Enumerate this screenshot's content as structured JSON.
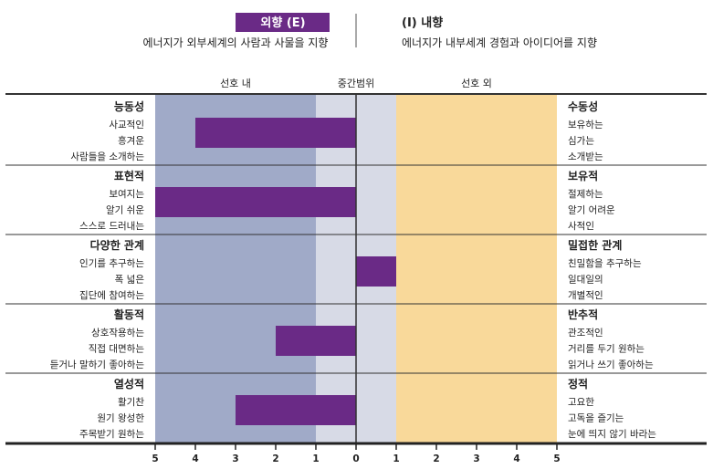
{
  "header": {
    "left_badge": "외향 (E)",
    "left_desc": "에너지가 외부세계의 사람과 사물을 지향",
    "right_title": "(I) 내향",
    "right_desc": "에너지가 내부세계 경험과 아이디어를 지향"
  },
  "zones": {
    "left": "선호 내",
    "middle": "중간범위",
    "right": "선호 외"
  },
  "colors": {
    "bar": "#6a2a86",
    "left_zone": "#a0aac8",
    "middle_zone": "#d7dae6",
    "right_zone": "#f9d99a",
    "badge": "#6a2a86"
  },
  "chart_data": {
    "type": "bar",
    "orientation": "horizontal",
    "x_ticks": [
      "5",
      "4",
      "3",
      "2",
      "1",
      "0",
      "1",
      "2",
      "3",
      "4",
      "5"
    ],
    "xlim": [
      -5,
      5
    ],
    "categories": [
      {
        "left_title": "능동성",
        "left_items": [
          "사교적인",
          "흥겨운",
          "사람들을 소개하는"
        ],
        "right_title": "수동성",
        "right_items": [
          "보유하는",
          "심가는",
          "소개받는"
        ],
        "value": -4
      },
      {
        "left_title": "표현적",
        "left_items": [
          "보여지는",
          "알기 쉬운",
          "스스로 드러내는"
        ],
        "right_title": "보유적",
        "right_items": [
          "절제하는",
          "알기 어려운",
          "사적인"
        ],
        "value": -5
      },
      {
        "left_title": "다양한 관계",
        "left_items": [
          "인기를 추구하는",
          "폭 넓은",
          "집단에 참여하는"
        ],
        "right_title": "밀접한 관계",
        "right_items": [
          "친밀함을 추구하는",
          "일대일의",
          "개별적인"
        ],
        "value": 1
      },
      {
        "left_title": "활동적",
        "left_items": [
          "상호작용하는",
          "직접 대면하는",
          "듣거나 말하기 좋아하는"
        ],
        "right_title": "반추적",
        "right_items": [
          "관조적인",
          "거리를 두기 원하는",
          "읽거나 쓰기 좋아하는"
        ],
        "value": -2
      },
      {
        "left_title": "열성적",
        "left_items": [
          "활기찬",
          "원기 왕성한",
          "주목받기 원하는"
        ],
        "right_title": "정적",
        "right_items": [
          "고요한",
          "고독을 즐기는",
          "눈에 띄지 않기 바라는"
        ],
        "value": -3
      }
    ]
  }
}
